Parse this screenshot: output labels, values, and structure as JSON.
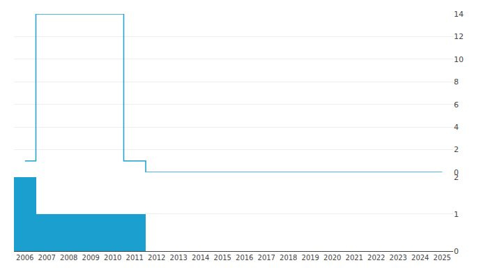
{
  "chart_data": [
    {
      "type": "line",
      "x": [
        2006,
        2007,
        2008,
        2009,
        2010,
        2011,
        2012,
        2013,
        2014,
        2015,
        2016,
        2017,
        2018,
        2019,
        2020,
        2021,
        2022,
        2023,
        2024,
        2025
      ],
      "values": [
        1,
        14,
        14,
        14,
        14,
        1,
        0,
        0,
        0,
        0,
        0,
        0,
        0,
        0,
        0,
        0,
        0,
        0,
        0,
        0
      ],
      "color": "#1a9fce",
      "xlim": [
        2005.5,
        2025.5
      ],
      "ylim": [
        0,
        14
      ],
      "yticks": [
        0,
        2,
        4,
        6,
        8,
        10,
        12,
        14
      ],
      "grid": true,
      "tick_labels": "y"
    },
    {
      "type": "bar",
      "x": [
        2006,
        2007,
        2008,
        2009,
        2010,
        2011,
        2012,
        2013,
        2014,
        2015,
        2016,
        2017,
        2018,
        2019,
        2020,
        2021,
        2022,
        2023,
        2024,
        2025
      ],
      "values": [
        2,
        1,
        1,
        1,
        1,
        1,
        0,
        0,
        0,
        0,
        0,
        0,
        0,
        0,
        0,
        0,
        0,
        0,
        0,
        0
      ],
      "color": "#1a9fce",
      "xlim": [
        2005.5,
        2025.5
      ],
      "xticks": [
        2006,
        2007,
        2008,
        2009,
        2010,
        2011,
        2012,
        2013,
        2014,
        2015,
        2016,
        2017,
        2018,
        2019,
        2020,
        2021,
        2022,
        2023,
        2024,
        2025
      ],
      "ylim": [
        0,
        2
      ],
      "yticks": [
        0,
        1,
        2
      ],
      "grid": true
    }
  ]
}
